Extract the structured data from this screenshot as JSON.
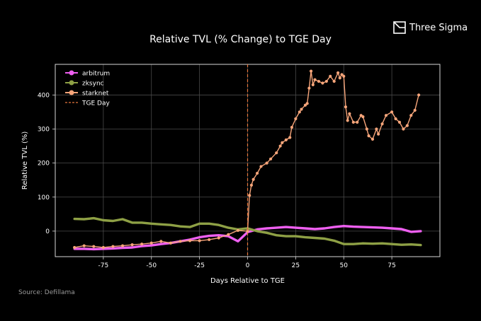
{
  "brand": {
    "name": "Three Sigma",
    "icon": "three-sigma-logo-icon"
  },
  "source": "Source: Defillama",
  "colors": {
    "background": "#000000",
    "arbitrum": "#ee5ff0",
    "zksync": "#8ea045",
    "starknet": "#f7a57a",
    "tge": "#e5763d",
    "grid": "#4a4a4a",
    "frame": "#d8d8d8"
  },
  "chart_data": {
    "type": "line",
    "title": "Relative TVL (% Change) to TGE Day",
    "xlabel": "Days Relative to TGE",
    "ylabel": "Relative TVL (%)",
    "xlim": [
      -100,
      100
    ],
    "ylim": [
      -75,
      490
    ],
    "xticks": [
      -75,
      -50,
      -25,
      0,
      25,
      50,
      75
    ],
    "yticks": [
      0,
      100,
      200,
      300,
      400
    ],
    "grid": true,
    "legend_position": "top-left",
    "legend": [
      "arbitrum",
      "zksync",
      "starknet",
      "TGE Day"
    ],
    "reference_line": {
      "name": "TGE Day",
      "x": 0,
      "style": "dashed"
    },
    "series": [
      {
        "name": "arbitrum",
        "color_key": "arbitrum",
        "markers": false,
        "x": [
          -90,
          -85,
          -80,
          -75,
          -70,
          -65,
          -60,
          -55,
          -50,
          -45,
          -40,
          -35,
          -30,
          -25,
          -20,
          -15,
          -10,
          -5,
          0,
          5,
          10,
          15,
          20,
          25,
          30,
          35,
          40,
          45,
          50,
          55,
          60,
          65,
          70,
          75,
          80,
          85,
          90
        ],
        "y": [
          -52,
          -52,
          -53,
          -52,
          -51,
          -49,
          -48,
          -44,
          -42,
          -38,
          -35,
          -30,
          -25,
          -18,
          -14,
          -12,
          -15,
          -30,
          -3,
          5,
          8,
          10,
          12,
          10,
          8,
          6,
          8,
          12,
          15,
          13,
          12,
          11,
          10,
          8,
          6,
          -2,
          0
        ]
      },
      {
        "name": "zksync",
        "color_key": "zksync",
        "markers": false,
        "x": [
          -90,
          -85,
          -80,
          -75,
          -70,
          -65,
          -60,
          -55,
          -50,
          -45,
          -40,
          -35,
          -30,
          -25,
          -20,
          -15,
          -10,
          -5,
          0,
          5,
          10,
          15,
          20,
          25,
          30,
          35,
          40,
          45,
          50,
          55,
          60,
          65,
          70,
          75,
          80,
          85,
          90
        ],
        "y": [
          36,
          35,
          38,
          32,
          30,
          35,
          25,
          25,
          22,
          20,
          18,
          14,
          12,
          22,
          22,
          18,
          10,
          5,
          8,
          0,
          -5,
          -12,
          -15,
          -15,
          -18,
          -20,
          -22,
          -28,
          -38,
          -38,
          -36,
          -37,
          -36,
          -38,
          -40,
          -39,
          -41
        ]
      },
      {
        "name": "starknet",
        "color_key": "starknet",
        "markers": true,
        "x": [
          -90,
          -85,
          -80,
          -75,
          -70,
          -65,
          -60,
          -55,
          -50,
          -45,
          -40,
          -35,
          -30,
          -25,
          -20,
          -15,
          -10,
          -5,
          0,
          1,
          2,
          3,
          5,
          7,
          10,
          12,
          15,
          17,
          18,
          20,
          22,
          23,
          25,
          27,
          28,
          30,
          31,
          32,
          33,
          34,
          35,
          37,
          39,
          41,
          43,
          45,
          47,
          48,
          49,
          50,
          51,
          52,
          53,
          55,
          57,
          59,
          60,
          62,
          63,
          65,
          67,
          68,
          70,
          72,
          75,
          77,
          79,
          81,
          83,
          85,
          87,
          89
        ],
        "y": [
          -48,
          -43,
          -45,
          -48,
          -45,
          -43,
          -40,
          -38,
          -35,
          -30,
          -35,
          -30,
          -28,
          -28,
          -25,
          -20,
          -10,
          2,
          0,
          105,
          135,
          152,
          170,
          190,
          200,
          212,
          230,
          250,
          260,
          268,
          275,
          305,
          330,
          350,
          358,
          370,
          375,
          420,
          470,
          430,
          445,
          440,
          435,
          440,
          455,
          440,
          465,
          450,
          460,
          455,
          365,
          325,
          345,
          320,
          320,
          340,
          336,
          300,
          280,
          270,
          300,
          285,
          315,
          340,
          350,
          330,
          320,
          300,
          310,
          340,
          355,
          400
        ]
      }
    ]
  }
}
